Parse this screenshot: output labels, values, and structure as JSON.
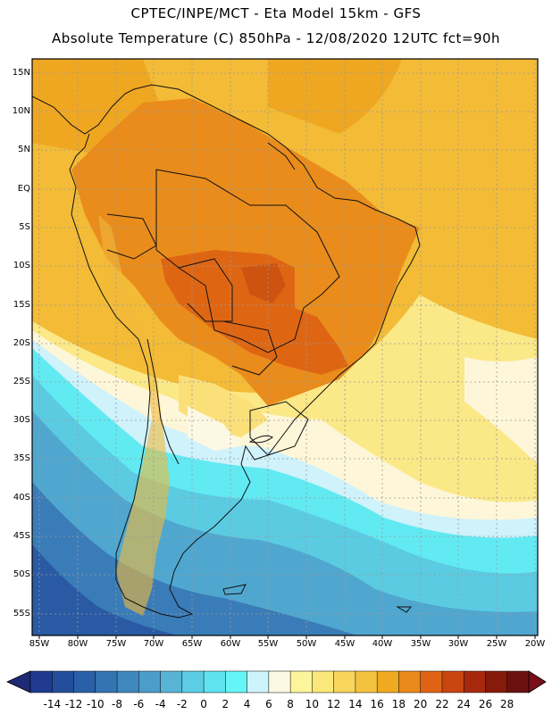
{
  "header": {
    "line1": "CPTEC/INPE/MCT -  Eta Model 15km - GFS",
    "line2": "Absolute Temperature (C) 850hPa - 12/08/2020 12UTC fct=90h"
  },
  "axes": {
    "lat_labels": [
      "15N",
      "10N",
      "5N",
      "EQ",
      "5S",
      "10S",
      "15S",
      "20S",
      "25S",
      "30S",
      "35S",
      "40S",
      "45S",
      "50S",
      "55S"
    ],
    "lon_labels": [
      "85W",
      "80W",
      "75W",
      "70W",
      "65W",
      "60W",
      "55W",
      "50W",
      "45W",
      "40W",
      "35W",
      "30W",
      "25W",
      "20W"
    ]
  },
  "colorbar": {
    "ticks": [
      "-14",
      "-12",
      "-10",
      "-8",
      "-6",
      "-4",
      "-2",
      "0",
      "2",
      "4",
      "6",
      "8",
      "10",
      "12",
      "14",
      "16",
      "18",
      "20",
      "22",
      "24",
      "26",
      "28"
    ],
    "colors": [
      "#1f3a8f",
      "#244d9c",
      "#2a60a8",
      "#3474b3",
      "#3f88be",
      "#4d9dca",
      "#58b4d6",
      "#5ccde4",
      "#5ee3ef",
      "#66f5f7",
      "#cdf3fb",
      "#fdf8e1",
      "#fdf59b",
      "#fbe87a",
      "#f8d55c",
      "#f4c23f",
      "#efaa20",
      "#e98a1a",
      "#e06315",
      "#c94611",
      "#a7290d",
      "#861a0b",
      "#6b1110"
    ],
    "under_color": "#1f2a75",
    "over_color": "#7a0e1a"
  }
}
